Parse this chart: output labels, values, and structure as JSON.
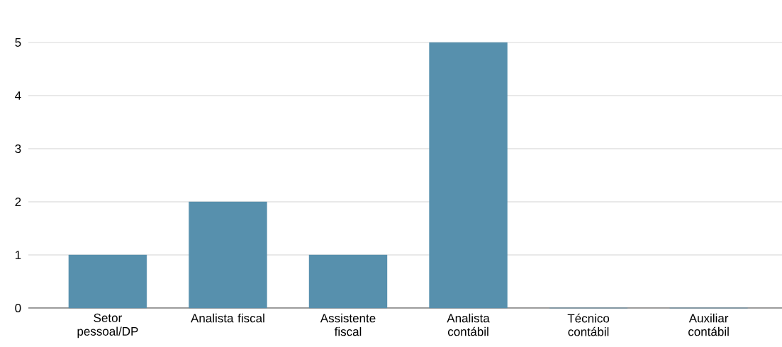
{
  "chart_data": {
    "type": "bar",
    "categories": [
      "Setor pessoal/DP",
      "Analista fiscal",
      "Assistente fiscal",
      "Analista contábil",
      "Técnico contábil",
      "Auxiliar contábil"
    ],
    "values": [
      1,
      2,
      1,
      5,
      0,
      0
    ],
    "color": "#5790ad",
    "ylim": [
      0,
      5
    ],
    "yticks": [
      0,
      1,
      2,
      3,
      4,
      5
    ],
    "grid": "y"
  }
}
